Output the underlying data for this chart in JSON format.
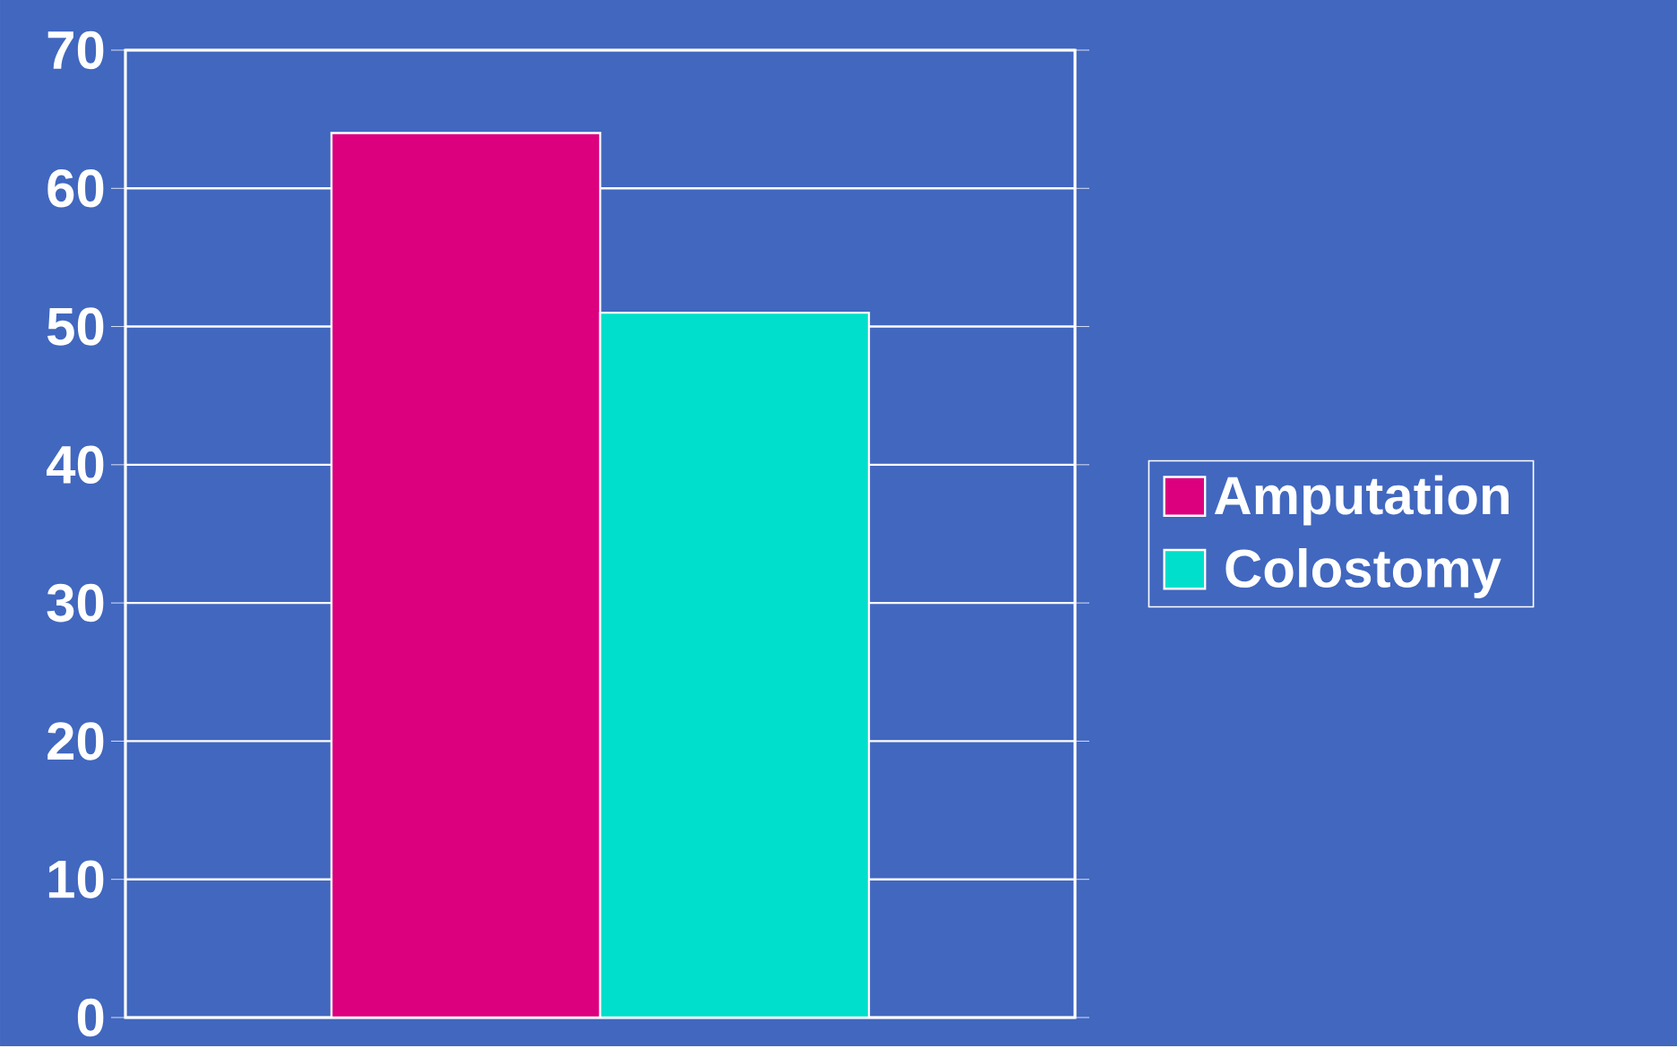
{
  "chart_data": {
    "type": "bar",
    "categories": [
      null
    ],
    "series": [
      {
        "name": "Amputation",
        "color": "#dc007e",
        "values": [
          64
        ]
      },
      {
        "name": "Colostomy",
        "color": "#00dfcb",
        "values": [
          51
        ]
      }
    ],
    "ylim": [
      0,
      70
    ],
    "yticks": [
      0,
      10,
      20,
      30,
      40,
      50,
      60,
      70
    ],
    "grid": "y",
    "legend": "right"
  }
}
